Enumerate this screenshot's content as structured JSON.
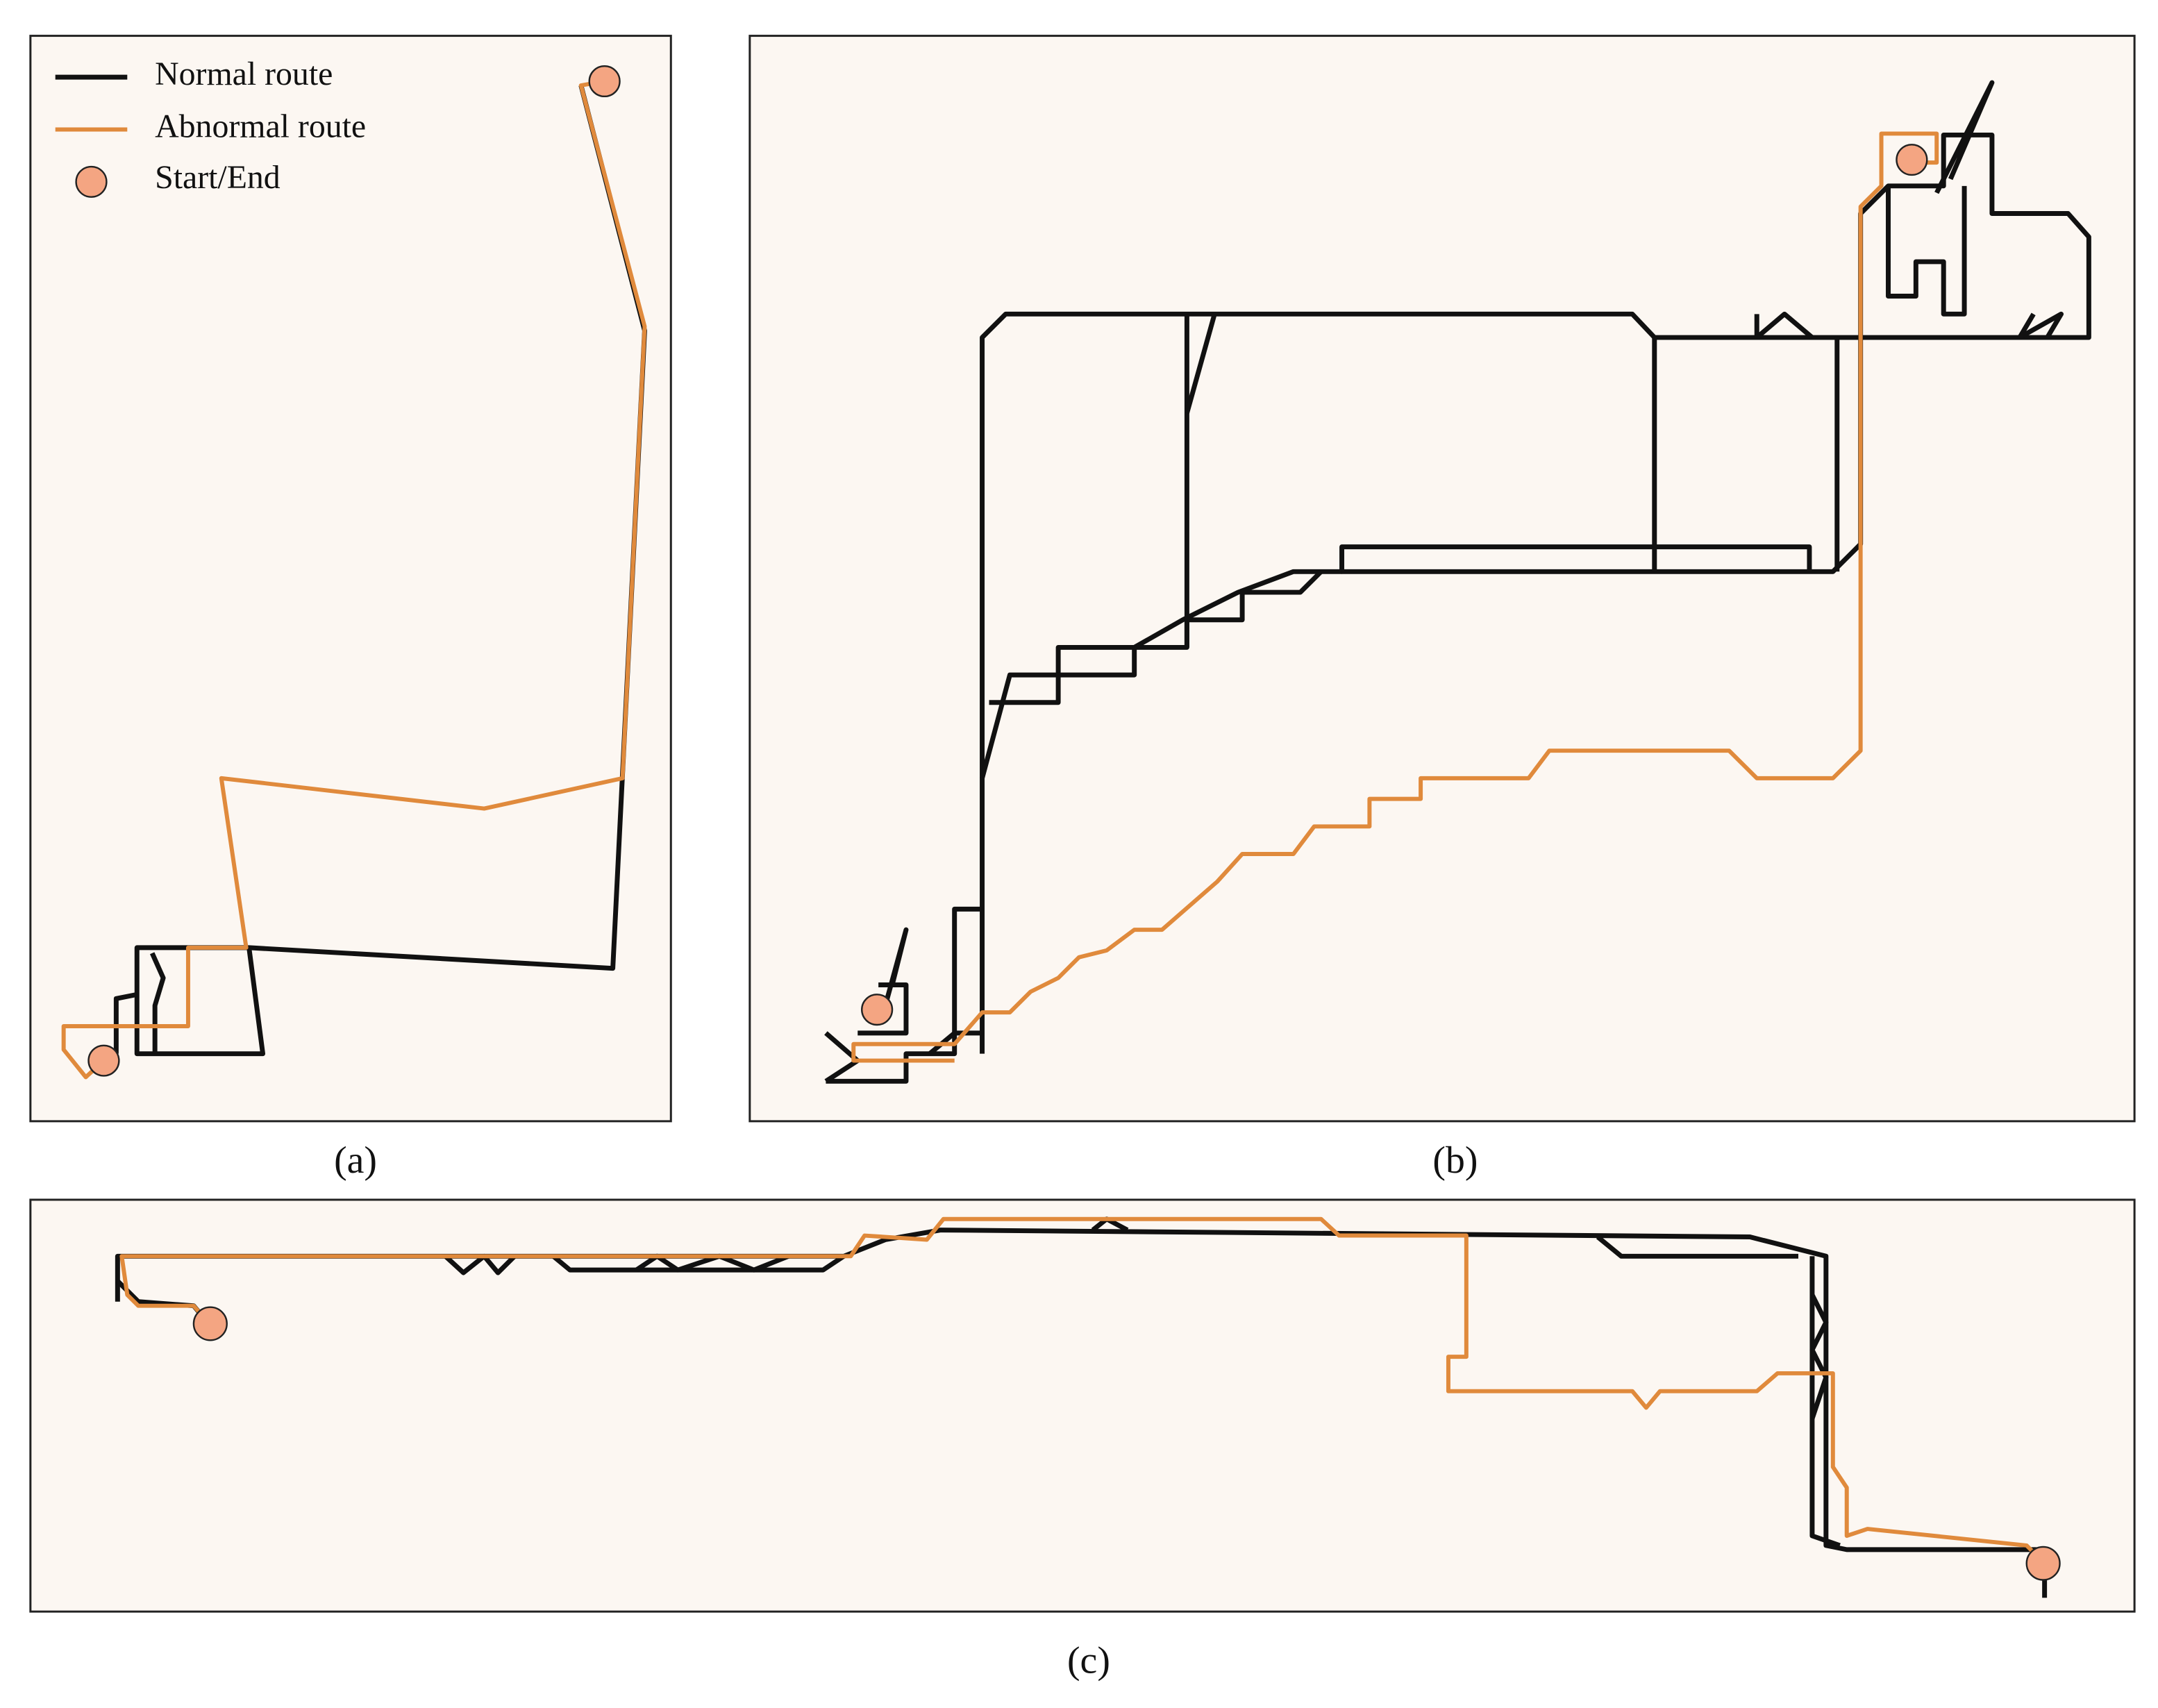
{
  "legend": {
    "items": [
      {
        "label": "Normal route"
      },
      {
        "label": "Abnormal route"
      },
      {
        "label": "Start/End"
      }
    ]
  },
  "panels": [
    {
      "caption": "(a)"
    },
    {
      "caption": "(b)"
    },
    {
      "caption": "(c)"
    }
  ]
}
